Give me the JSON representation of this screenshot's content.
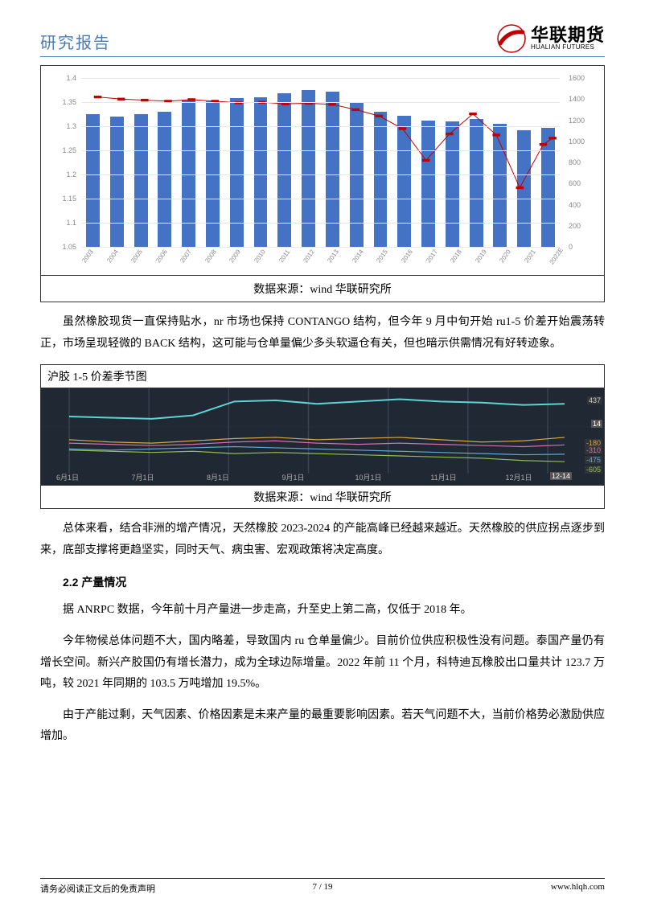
{
  "header": {
    "title": "研究报告",
    "logo_cn": "华联期货",
    "logo_en": "HUALIAN FUTURES"
  },
  "chart1": {
    "type": "bar+line",
    "background_color": "#ffffff",
    "grid_color": "#e8e8e8",
    "bar_color": "#4472c4",
    "line_color": "#c00000",
    "marker_color": "#c00000",
    "axis_label_color": "#888888",
    "axis_label_fontsize": 9,
    "categories": [
      "2003",
      "2004",
      "2005",
      "2006",
      "2007",
      "2008",
      "2009",
      "2010",
      "2011",
      "2012",
      "2013",
      "2014",
      "2015",
      "2016",
      "2017",
      "2018",
      "2019",
      "2020",
      "2021",
      "2022E"
    ],
    "bar_values": [
      1.325,
      1.32,
      1.325,
      1.33,
      1.355,
      1.352,
      1.358,
      1.36,
      1.368,
      1.375,
      1.372,
      1.348,
      1.33,
      1.322,
      1.312,
      1.31,
      1.315,
      1.305,
      1.292,
      1.296
    ],
    "left_ylim": [
      1.05,
      1.4
    ],
    "left_yticks": [
      "1.05",
      "1.1",
      "1.15",
      "1.2",
      "1.25",
      "1.3",
      "1.35",
      "1.4"
    ],
    "line_values": [
      1420,
      1400,
      1390,
      1380,
      1395,
      1380,
      1365,
      1370,
      1355,
      1360,
      1350,
      1300,
      1240,
      1120,
      820,
      1070,
      1260,
      1060,
      560,
      970
    ],
    "line_end_values": [
      970,
      1030
    ],
    "right_ylim": [
      0,
      1600
    ],
    "right_yticks": [
      "0",
      "200",
      "400",
      "600",
      "800",
      "1000",
      "1200",
      "1400",
      "1600"
    ],
    "source": "数据来源：wind 华联研究所"
  },
  "para1": "虽然橡胶现货一直保持贴水，nr 市场也保持 CONTANGO 结构，但今年 9 月中旬开始 ru1-5 价差开始震荡转正，市场呈现轻微的 BACK 结构，这可能与仓单量偏少多头软逼仓有关，但也暗示供需情况有好转迹象。",
  "chart2": {
    "title": "沪胶 1-5 价差季节图",
    "type": "seasonal-line",
    "background_color": "#1f2833",
    "grid_color": "#3a4450",
    "x_labels": [
      "6月1日",
      "7月1日",
      "8月1日",
      "9月1日",
      "10月1日",
      "11月1日",
      "12月1日"
    ],
    "x_end_label": "12-14",
    "right_labels": [
      {
        "text": "437",
        "color": "#cccccc",
        "top_pct": 8
      },
      {
        "text": "14",
        "color": "#ffffff",
        "top_pct": 32,
        "bg": "#555555"
      },
      {
        "text": "-180",
        "color": "#d4a947",
        "top_pct": 52
      },
      {
        "text": "-310",
        "color": "#d96fb0",
        "top_pct": 60
      },
      {
        "text": "-475",
        "color": "#5fa8d3",
        "top_pct": 70
      },
      {
        "text": "-605",
        "color": "#8fbf4f",
        "top_pct": 80
      }
    ],
    "series": [
      {
        "color": "#5fd3d3",
        "width": 2,
        "points": [
          18,
          16,
          14,
          20,
          44,
          46,
          40,
          44,
          48,
          44,
          42,
          38,
          40
        ]
      },
      {
        "color": "#d4a947",
        "width": 1.2,
        "points": [
          -22,
          -26,
          -28,
          -24,
          -20,
          -18,
          -22,
          -20,
          -18,
          -22,
          -26,
          -24,
          -18
        ]
      },
      {
        "color": "#d96fb0",
        "width": 1.2,
        "points": [
          -28,
          -30,
          -32,
          -30,
          -26,
          -24,
          -28,
          -30,
          -28,
          -30,
          -32,
          -34,
          -31
        ]
      },
      {
        "color": "#8fbf4f",
        "width": 1.2,
        "points": [
          -40,
          -42,
          -44,
          -42,
          -46,
          -44,
          -46,
          -48,
          -50,
          -52,
          -54,
          -58,
          -60
        ]
      },
      {
        "color": "#5fa8d3",
        "width": 1.2,
        "points": [
          -38,
          -40,
          -38,
          -36,
          -34,
          -36,
          -38,
          -40,
          -42,
          -44,
          -46,
          -48,
          -47
        ]
      }
    ],
    "source": "数据来源：wind 华联研究所"
  },
  "para2": "总体来看，结合非洲的增产情况，天然橡胶 2023-2024 的产能高峰已经越来越近。天然橡胶的供应拐点逐步到来，底部支撑将更趋坚实，同时天气、病虫害、宏观政策将决定高度。",
  "section_heading": "2.2 产量情况",
  "para3": "据 ANRPC 数据，今年前十月产量进一步走高，升至史上第二高，仅低于 2018 年。",
  "para4": "今年物候总体问题不大，国内略差，导致国内 ru 仓单量偏少。目前价位供应积极性没有问题。泰国产量仍有增长空间。新兴产胶国仍有增长潜力，成为全球边际增量。2022 年前 11 个月，科特迪瓦橡胶出口量共计 123.7 万吨，较 2021 年同期的 103.5 万吨增加 19.5%。",
  "para5": "由于产能过剩，天气因素、价格因素是未来产量的最重要影响因素。若天气问题不大，当前价格势必激励供应增加。",
  "footer": {
    "left": "请务必阅读正文后的免责声明",
    "center": "7 / 19",
    "right": "www.hlqh.com"
  }
}
